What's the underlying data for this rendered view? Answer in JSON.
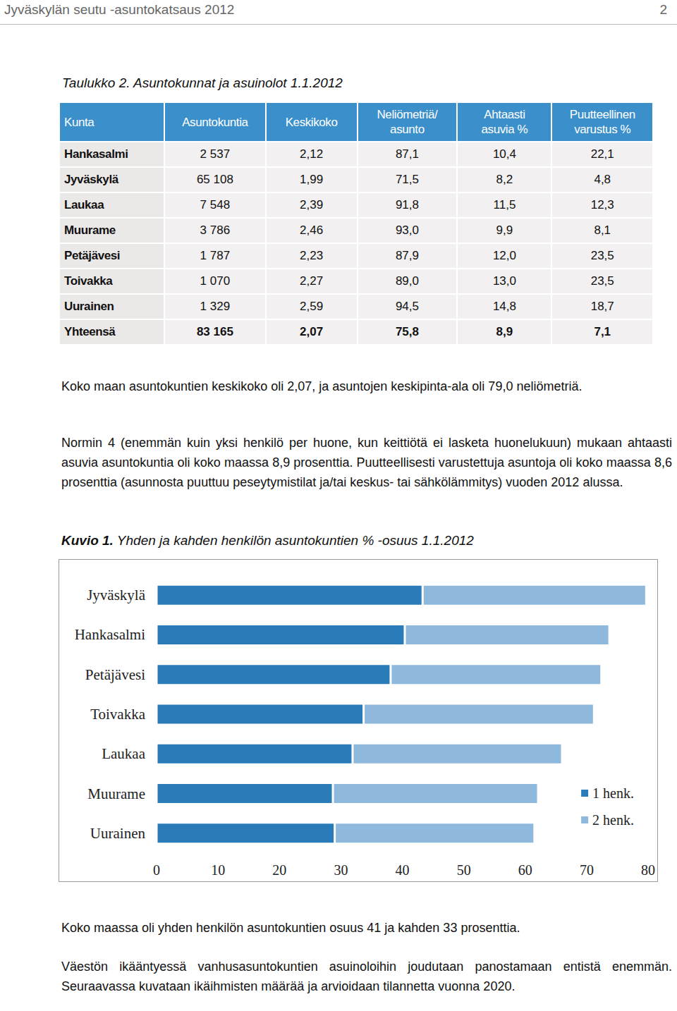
{
  "header": {
    "title": "Jyväskylän seutu -asuntokatsaus 2012",
    "page": "2"
  },
  "table": {
    "caption": "Taulukko 2. Asuntokunnat ja asuinolot 1.1.2012",
    "columns": [
      "Kunta",
      "Asuntokuntia",
      "Keskikoko",
      "Neliömetriä/\nasunto",
      "Ahtaasti\nasuvia %",
      "Puutteellinen\nvarustus %"
    ],
    "rows": [
      [
        "Hankasalmi",
        "2 537",
        "2,12",
        "87,1",
        "10,4",
        "22,1"
      ],
      [
        "Jyväskylä",
        "65 108",
        "1,99",
        "71,5",
        "8,2",
        "4,8"
      ],
      [
        "Laukaa",
        "7 548",
        "2,39",
        "91,8",
        "11,5",
        "12,3"
      ],
      [
        "Muurame",
        "3 786",
        "2,46",
        "93,0",
        "9,9",
        "8,1"
      ],
      [
        "Petäjävesi",
        "1 787",
        "2,23",
        "87,9",
        "12,0",
        "23,5"
      ],
      [
        "Toivakka",
        "1 070",
        "2,27",
        "89,0",
        "13,0",
        "23,5"
      ],
      [
        "Uurainen",
        "1 329",
        "2,59",
        "94,5",
        "14,8",
        "18,7"
      ]
    ],
    "total": [
      "Yhteensä",
      "83 165",
      "2,07",
      "75,8",
      "8,9",
      "7,1"
    ]
  },
  "paragraphs": [
    "Koko maan asuntokuntien keskikoko oli 2,07, ja asuntojen keskipinta-ala oli 79,0 neliömetriä.",
    "Normin 4 (enemmän kuin yksi henkilö per huone, kun keittiötä ei lasketa huonelukuun) mukaan ahtaasti asuvia asuntokuntia oli koko maassa 8,9 prosenttia. Puutteellisesti varustettuja asuntoja oli koko maassa 8,6 prosenttia (asunnosta puuttuu peseytymistilat ja/tai keskus- tai sähkölämmitys) vuoden 2012 alussa."
  ],
  "figure": {
    "label": "Kuvio 1.",
    "caption": "Yhden ja kahden henkilön asuntokuntien % -osuus 1.1.2012"
  },
  "chart_data": {
    "type": "bar",
    "orientation": "horizontal",
    "stacked": true,
    "grid": false,
    "legend": "right",
    "categories": [
      "Jyväskylä",
      "Hankasalmi",
      "Petäjävesi",
      "Toivakka",
      "Laukaa",
      "Muurame",
      "Uurainen"
    ],
    "series": [
      {
        "name": "1 henk.",
        "color": "#2a7cb8",
        "values": [
          43.3,
          40.4,
          38.1,
          33.7,
          31.9,
          28.7,
          29.0
        ]
      },
      {
        "name": "2 henk.",
        "color": "#8fb9dc",
        "values": [
          36.4,
          33.3,
          34.3,
          37.5,
          34.1,
          33.4,
          32.5
        ]
      }
    ],
    "xlim": [
      0,
      80
    ],
    "xticks": [
      0,
      10,
      20,
      30,
      40,
      50,
      60,
      70,
      80
    ]
  },
  "after_paragraphs": [
    "Koko maassa oli yhden henkilön asuntokuntien osuus 41 ja kahden 33 prosenttia.",
    "Väestön ikääntyessä vanhusasuntokuntien asuinoloihin joudutaan panostamaan entistä enemmän. Seuraavassa kuvataan ikäihmisten määrää ja arvioidaan tilannetta vuonna 2020."
  ]
}
